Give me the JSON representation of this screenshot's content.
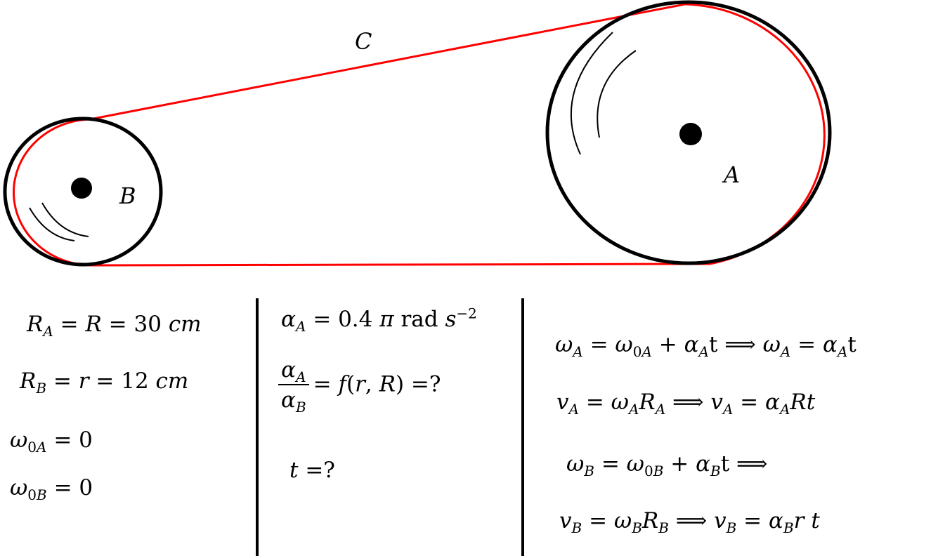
{
  "labels": {
    "belt": "C",
    "large_pulley": "A",
    "small_pulley": "B"
  },
  "colors": {
    "belt": "#ff0000",
    "outline": "#000000"
  },
  "given": [
    "R_A = R = 30 cm",
    "R_B = r = 12 cm",
    "ω_0A = 0",
    "ω_0B = 0"
  ],
  "asked": [
    "α_A = 0.4 π rad s^-2",
    "α_A / α_B = f(r, R) =?",
    "t =?"
  ],
  "solution": [
    "ω_A = ω_0A + α_A t ⟹ ω_A = α_A t",
    "v_A = ω_A R_A ⟹ v_A = α_A R t",
    "ω_B = ω_0B + α_B t ⟹",
    "v_B = ω_B R_B ⟹ v_B = α_B r t"
  ]
}
